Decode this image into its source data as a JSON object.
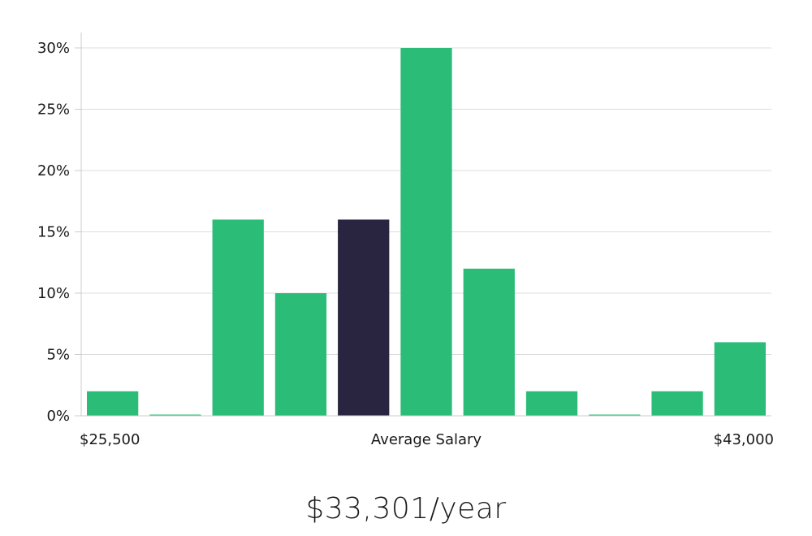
{
  "colors": {
    "bar": "#2bbd77",
    "highlight": "#29243f",
    "grid": "#dcdcdc",
    "axis": "#cccccc"
  },
  "chart_data": {
    "type": "bar",
    "ylim": [
      0,
      30
    ],
    "yticks": [
      0,
      5,
      10,
      15,
      20,
      25,
      30
    ],
    "ytick_format": "{v}%",
    "values": [
      2,
      0,
      16,
      10,
      16,
      30,
      12,
      2,
      0,
      2,
      6
    ],
    "highlight_index": 4,
    "x_labels": {
      "min": "$25,500",
      "center": "Average Salary",
      "max": "$43,000"
    },
    "grid": true
  },
  "summary": {
    "salary": "$33,301/year"
  }
}
